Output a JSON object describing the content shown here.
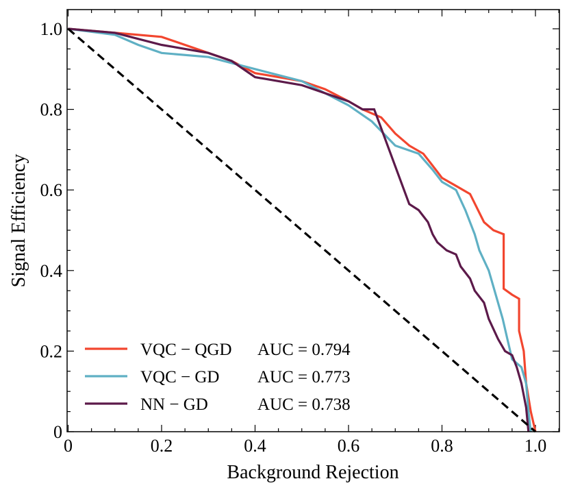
{
  "chart_data": {
    "type": "line",
    "title": "",
    "xlabel": "Background Rejection",
    "ylabel": "Signal Efficiency",
    "xlim": [
      0,
      1.05
    ],
    "ylim": [
      0,
      1.05
    ],
    "xticks": [
      0,
      0.2,
      0.4,
      0.6,
      0.8,
      1.0
    ],
    "xtick_labels": [
      "0",
      "0.2",
      "0.4",
      "0.6",
      "0.8",
      "1.0"
    ],
    "yticks": [
      0,
      0.2,
      0.4,
      0.6,
      0.8,
      1.0
    ],
    "ytick_labels": [
      "0",
      "0.2",
      "0.4",
      "0.6",
      "0.8",
      "1.0"
    ],
    "grid": false,
    "legend_position": "lower-left",
    "series": [
      {
        "name": "VQC − QGD",
        "auc_label": "AUC  = 0.794",
        "color": "#f2462f",
        "x": [
          0,
          0.1,
          0.2,
          0.3,
          0.35,
          0.4,
          0.5,
          0.55,
          0.6,
          0.63,
          0.67,
          0.7,
          0.73,
          0.76,
          0.78,
          0.8,
          0.83,
          0.86,
          0.89,
          0.91,
          0.932,
          0.932,
          0.95,
          0.965,
          0.965,
          0.975,
          0.98,
          0.99,
          1.0
        ],
        "y": [
          1.0,
          0.99,
          0.98,
          0.94,
          0.92,
          0.89,
          0.87,
          0.85,
          0.82,
          0.8,
          0.78,
          0.74,
          0.71,
          0.69,
          0.66,
          0.63,
          0.61,
          0.59,
          0.52,
          0.5,
          0.49,
          0.355,
          0.34,
          0.33,
          0.25,
          0.2,
          0.12,
          0.05,
          0.0
        ]
      },
      {
        "name": "VQC − GD",
        "auc_label": "AUC  = 0.773",
        "color": "#5fb0c4",
        "x": [
          0,
          0.1,
          0.15,
          0.2,
          0.3,
          0.4,
          0.5,
          0.6,
          0.65,
          0.7,
          0.75,
          0.78,
          0.8,
          0.83,
          0.85,
          0.87,
          0.88,
          0.9,
          0.91,
          0.93,
          0.94,
          0.95,
          0.97,
          0.98,
          0.985,
          0.99
        ],
        "y": [
          1.0,
          0.985,
          0.96,
          0.94,
          0.93,
          0.9,
          0.87,
          0.81,
          0.77,
          0.71,
          0.69,
          0.65,
          0.62,
          0.6,
          0.55,
          0.49,
          0.45,
          0.4,
          0.36,
          0.28,
          0.23,
          0.18,
          0.16,
          0.12,
          0.05,
          0.0
        ]
      },
      {
        "name": "NN − GD",
        "auc_label": "AUC  = 0.738",
        "color": "#5c1a4a",
        "x": [
          0,
          0.1,
          0.2,
          0.3,
          0.35,
          0.4,
          0.5,
          0.6,
          0.63,
          0.655,
          0.73,
          0.75,
          0.77,
          0.78,
          0.79,
          0.81,
          0.83,
          0.84,
          0.86,
          0.87,
          0.89,
          0.9,
          0.92,
          0.935,
          0.95,
          0.96,
          0.97,
          0.98,
          0.985
        ],
        "y": [
          1.0,
          0.99,
          0.96,
          0.94,
          0.92,
          0.88,
          0.86,
          0.82,
          0.8,
          0.8,
          0.565,
          0.55,
          0.52,
          0.49,
          0.47,
          0.45,
          0.44,
          0.41,
          0.38,
          0.35,
          0.32,
          0.28,
          0.23,
          0.2,
          0.19,
          0.16,
          0.12,
          0.06,
          0.0
        ]
      }
    ],
    "reference_line": {
      "x": [
        0,
        1
      ],
      "y": [
        1,
        0
      ],
      "style": "dashed",
      "color": "#000000"
    }
  }
}
